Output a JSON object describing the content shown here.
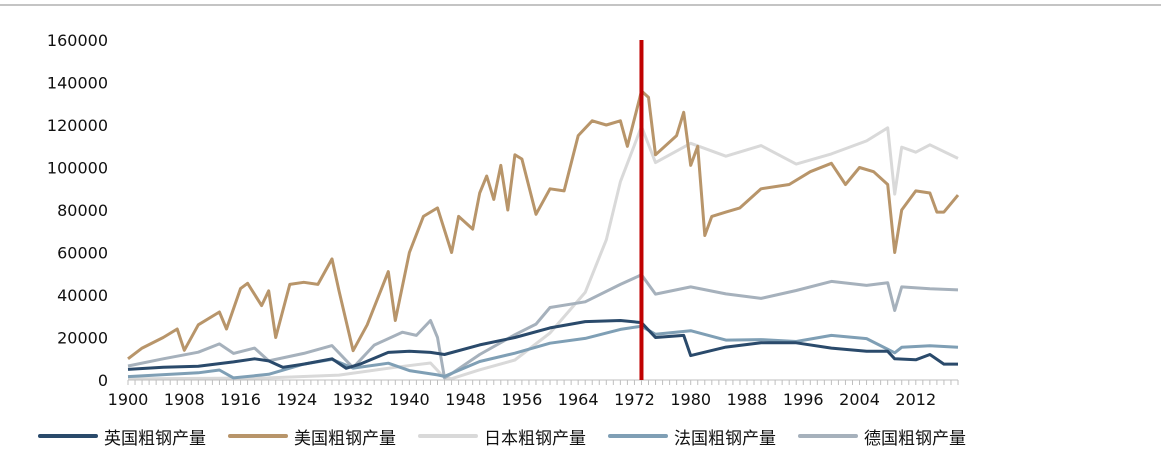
{
  "chart_data": {
    "type": "line",
    "xlim": [
      1900,
      2018
    ],
    "ylim": [
      0,
      160000
    ],
    "y_ticks": [
      "0",
      "20000",
      "40000",
      "60000",
      "80000",
      "100000",
      "120000",
      "140000",
      "160000"
    ],
    "x_ticks": [
      "1900",
      "1908",
      "1916",
      "1924",
      "1932",
      "1940",
      "1948",
      "1956",
      "1964",
      "1972",
      "1980",
      "1988",
      "1996",
      "2004",
      "2012"
    ],
    "grid": false,
    "legend_position": "bottom",
    "marker_line": {
      "x": 1973,
      "color": "#c00000"
    },
    "series": [
      {
        "name": "英国粗钢产量",
        "color": "#2a4a6b",
        "x": [
          1900,
          1905,
          1910,
          1915,
          1918,
          1920,
          1922,
          1925,
          1929,
          1931,
          1933,
          1937,
          1940,
          1943,
          1945,
          1950,
          1955,
          1960,
          1965,
          1970,
          1973,
          1975,
          1979,
          1980,
          1985,
          1990,
          1995,
          2000,
          2005,
          2008,
          2009,
          2012,
          2014,
          2016,
          2018
        ],
        "y": [
          5000,
          6000,
          6500,
          8500,
          10000,
          9000,
          6000,
          7500,
          10000,
          5500,
          7500,
          13000,
          13500,
          13000,
          12000,
          16500,
          20000,
          24500,
          27500,
          28000,
          27000,
          20000,
          21000,
          11500,
          15500,
          17500,
          17500,
          15000,
          13500,
          13500,
          10000,
          9500,
          12000,
          7500,
          7500
        ]
      },
      {
        "name": "美国粗钢产量",
        "color": "#b8956a",
        "x": [
          1900,
          1902,
          1905,
          1907,
          1908,
          1910,
          1913,
          1914,
          1916,
          1917,
          1919,
          1920,
          1921,
          1923,
          1925,
          1927,
          1929,
          1930,
          1932,
          1934,
          1937,
          1938,
          1940,
          1942,
          1944,
          1946,
          1947,
          1949,
          1950,
          1951,
          1952,
          1953,
          1954,
          1955,
          1956,
          1958,
          1960,
          1962,
          1964,
          1966,
          1968,
          1970,
          1971,
          1973,
          1974,
          1975,
          1978,
          1979,
          1980,
          1981,
          1982,
          1983,
          1985,
          1987,
          1990,
          1994,
          1997,
          2000,
          2002,
          2004,
          2006,
          2008,
          2009,
          2010,
          2012,
          2014,
          2015,
          2016,
          2018
        ],
        "y": [
          10000,
          15000,
          20000,
          24000,
          14000,
          26000,
          32000,
          24000,
          43000,
          45500,
          35000,
          42000,
          20000,
          45000,
          46000,
          45000,
          57000,
          42000,
          13800,
          26000,
          51000,
          28000,
          60000,
          77000,
          81000,
          60000,
          77000,
          71000,
          88000,
          96000,
          85000,
          101000,
          80000,
          106000,
          104000,
          78000,
          90000,
          89000,
          115000,
          122000,
          120000,
          122000,
          110000,
          136000,
          133000,
          106000,
          115000,
          126000,
          101000,
          110000,
          68000,
          77000,
          79000,
          81000,
          90000,
          92000,
          98000,
          102000,
          92000,
          100000,
          98000,
          92000,
          60000,
          80000,
          89000,
          88000,
          79000,
          79000,
          87000
        ]
      },
      {
        "name": "日本粗钢产量",
        "color": "#d9d9d9",
        "x": [
          1900,
          1920,
          1930,
          1938,
          1943,
          1945,
          1946,
          1950,
          1955,
          1960,
          1965,
          1968,
          1970,
          1973,
          1975,
          1980,
          1985,
          1990,
          1995,
          2000,
          2005,
          2008,
          2009,
          2010,
          2012,
          2014,
          2018
        ],
        "y": [
          500,
          1000,
          2300,
          6000,
          8000,
          1000,
          600,
          4800,
          9400,
          22100,
          41200,
          66000,
          93300,
          119300,
          102300,
          111400,
          105300,
          110300,
          101600,
          106400,
          112500,
          118700,
          87500,
          109600,
          107200,
          110700,
          104300
        ]
      },
      {
        "name": "法国粗钢产量",
        "color": "#7f9fb5",
        "x": [
          1900,
          1910,
          1913,
          1915,
          1920,
          1925,
          1929,
          1932,
          1937,
          1940,
          1944,
          1945,
          1950,
          1955,
          1960,
          1965,
          1970,
          1973,
          1975,
          1980,
          1985,
          1990,
          1995,
          2000,
          2005,
          2009,
          2010,
          2014,
          2018
        ],
        "y": [
          1600,
          3400,
          4700,
          1000,
          2700,
          7500,
          9700,
          5600,
          7900,
          4400,
          2400,
          1700,
          8700,
          12600,
          17300,
          19600,
          23800,
          25300,
          21500,
          23200,
          18800,
          19000,
          18100,
          21000,
          19500,
          12800,
          15400,
          16100,
          15400
        ]
      },
      {
        "name": "德国粗钢产量",
        "color": "#a6b1bc",
        "x": [
          1900,
          1905,
          1910,
          1913,
          1915,
          1918,
          1920,
          1925,
          1929,
          1932,
          1935,
          1939,
          1941,
          1943,
          1944,
          1945,
          1946,
          1950,
          1955,
          1958,
          1960,
          1965,
          1970,
          1973,
          1975,
          1980,
          1985,
          1990,
          1995,
          2000,
          2005,
          2008,
          2009,
          2010,
          2014,
          2018
        ],
        "y": [
          6600,
          10000,
          13100,
          17000,
          12500,
          15000,
          9000,
          12500,
          16200,
          5800,
          16400,
          22500,
          21000,
          28000,
          20000,
          1000,
          3000,
          12000,
          21300,
          26300,
          34100,
          36800,
          45000,
          49500,
          40400,
          43800,
          40500,
          38400,
          42100,
          46400,
          44500,
          45800,
          32700,
          43800,
          42900,
          42400
        ]
      }
    ]
  }
}
